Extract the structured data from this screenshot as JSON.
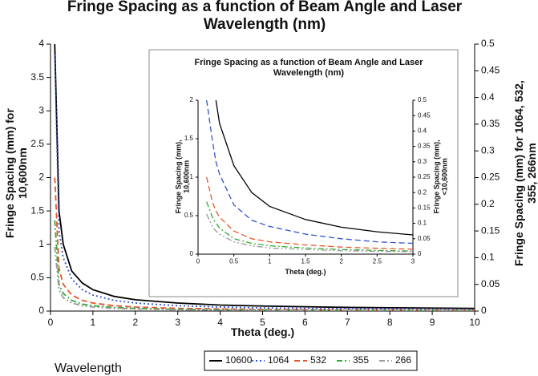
{
  "chart_data": [
    {
      "type": "line",
      "title": "Fringe Spacing as a function of Beam Angle and Laser Wavelength (nm)",
      "x_label": "Theta (deg.)",
      "y_label": "Fringe Spacing (mm) for 10,600nm",
      "y2_label": "Fringe Spacing (mm) for 1064, 532, 355, 266nm",
      "legend_title": "Wavelength",
      "legend": "bottom",
      "x": [
        0.1,
        0.2,
        0.3,
        0.5,
        0.75,
        1,
        1.5,
        2,
        3,
        4,
        5,
        6,
        7,
        8,
        9,
        10
      ],
      "series": [
        {
          "name": "10600",
          "color": "#000000",
          "dash": "solid",
          "axis": "y",
          "values": [
            4,
            1.5,
            1.0,
            0.6,
            0.42,
            0.32,
            0.22,
            0.17,
            0.12,
            0.09,
            0.075,
            0.065,
            0.055,
            0.05,
            0.045,
            0.04
          ]
        },
        {
          "name": "1064",
          "color": "#3355cc",
          "dash": "dotted",
          "axis": "y2",
          "values": [
            0.48,
            0.15,
            0.1,
            0.06,
            0.04,
            0.03,
            0.02,
            0.015,
            0.01,
            0.0075,
            0.006,
            0.005,
            0.0045,
            0.004,
            0.0035,
            0.003
          ]
        },
        {
          "name": "532",
          "color": "#e8542a",
          "dash": "dashed",
          "axis": "y2",
          "values": [
            0.25,
            0.08,
            0.05,
            0.03,
            0.02,
            0.015,
            0.01,
            0.0075,
            0.005,
            0.004,
            0.003,
            0.0025,
            0.002,
            0.002,
            0.0018,
            0.0015
          ]
        },
        {
          "name": "355",
          "color": "#33aa33",
          "dash": "dashdot",
          "axis": "y2",
          "values": [
            0.17,
            0.05,
            0.033,
            0.02,
            0.013,
            0.01,
            0.0067,
            0.005,
            0.0033,
            0.0025,
            0.002,
            0.0017,
            0.0014,
            0.0013,
            0.0011,
            0.001
          ]
        },
        {
          "name": "266",
          "color": "#999999",
          "dash": "dashdotdot",
          "axis": "y2",
          "values": [
            0.12,
            0.04,
            0.025,
            0.015,
            0.01,
            0.0075,
            0.005,
            0.0038,
            0.0025,
            0.0019,
            0.0015,
            0.0013,
            0.0011,
            0.001,
            0.0008,
            0.0008
          ]
        }
      ],
      "xlim": [
        0,
        10
      ],
      "xticks": [
        0,
        1,
        2,
        3,
        4,
        5,
        6,
        7,
        8,
        9,
        10
      ],
      "ylim": [
        0,
        4
      ],
      "yticks": [
        0,
        0.5,
        1,
        1.5,
        2,
        2.5,
        3,
        3.5,
        4
      ],
      "y2lim": [
        0,
        0.5
      ],
      "y2ticks": [
        0,
        0.05,
        0.1,
        0.15,
        0.2,
        0.25,
        0.3,
        0.35,
        0.4,
        0.45,
        0.5
      ],
      "grid": false
    },
    {
      "type": "line",
      "title": "Fringe Spacing as a function of Beam Angle and Laser Wavelength (nm)",
      "x_label": "Theta (deg.)",
      "y_label": "Fringe Spacing (mm), 10,600nm",
      "y2_label": "Fringe Spacing (mm), <10,600nm",
      "x": [
        0.12,
        0.2,
        0.25,
        0.3,
        0.5,
        0.75,
        1,
        1.5,
        2,
        2.5,
        3
      ],
      "series": [
        {
          "color": "#000000",
          "dash": "solid",
          "axis": "y",
          "values": [
            null,
            null,
            2,
            1.7,
            1.15,
            0.8,
            0.62,
            0.45,
            0.35,
            0.29,
            0.25
          ]
        },
        {
          "color": "#3355cc",
          "dash": "dashed",
          "axis": "y2",
          "values": [
            0.5,
            0.37,
            0.3,
            0.26,
            0.16,
            0.11,
            0.09,
            0.065,
            0.05,
            0.04,
            0.035
          ]
        },
        {
          "color": "#e8542a",
          "dash": "dashed",
          "axis": "y2",
          "values": [
            0.25,
            0.17,
            0.14,
            0.12,
            0.075,
            0.05,
            0.04,
            0.03,
            0.023,
            0.019,
            0.016
          ]
        },
        {
          "color": "#33aa33",
          "dash": "dashdot",
          "axis": "y2",
          "values": [
            0.17,
            0.12,
            0.1,
            0.085,
            0.05,
            0.035,
            0.027,
            0.02,
            0.015,
            0.012,
            0.01
          ]
        },
        {
          "color": "#999999",
          "dash": "dashdotdot",
          "axis": "y2",
          "values": [
            0.13,
            0.09,
            0.075,
            0.065,
            0.04,
            0.027,
            0.02,
            0.015,
            0.011,
            0.009,
            0.008
          ]
        }
      ],
      "xlim": [
        0,
        3
      ],
      "xticks": [
        0,
        0.5,
        1,
        1.5,
        2,
        2.5,
        3
      ],
      "ylim": [
        0,
        2
      ],
      "yticks": [
        0,
        0.5,
        1,
        1.5,
        2
      ],
      "y2lim": [
        0,
        0.5
      ],
      "y2ticks": [
        0,
        0.05,
        0.1,
        0.15,
        0.2,
        0.25,
        0.3,
        0.35,
        0.4,
        0.45,
        0.5
      ],
      "grid": false
    }
  ]
}
